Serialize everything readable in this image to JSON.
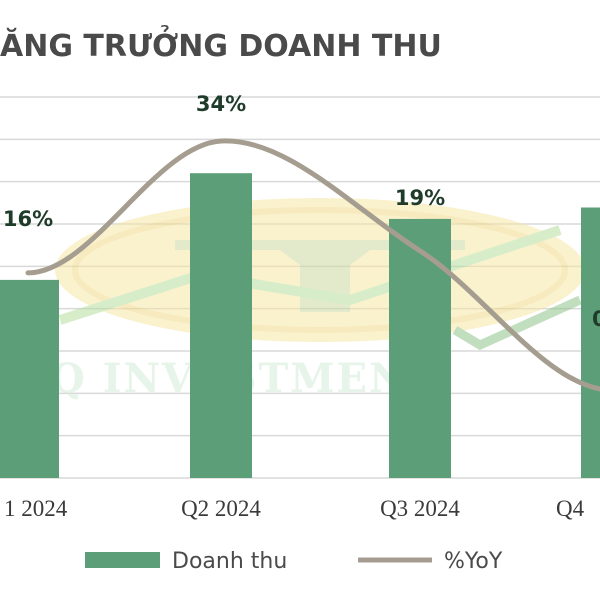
{
  "chart_data": {
    "type": "bar",
    "title": "ĂNG TRƯỞNG DOANH THU",
    "categories": [
      "1 2024",
      "Q2 2024",
      "Q3 2024",
      "Q4"
    ],
    "series": [
      {
        "name": "Doanh thu",
        "type": "bar",
        "values": [
          52,
          80,
          68,
          71
        ]
      },
      {
        "name": "%YoY",
        "type": "line",
        "values": [
          16,
          34,
          19,
          0
        ]
      }
    ],
    "data_labels": [
      "16%",
      "34%",
      "19%",
      "0"
    ],
    "grid": true,
    "legend_position": "bottom",
    "colors": {
      "bar": "#5c9e78",
      "line": "#a59d8f",
      "grid": "#d9d9d9",
      "label": "#1f3b2a"
    }
  },
  "watermark": {
    "text": "Q INVESTMENT"
  }
}
